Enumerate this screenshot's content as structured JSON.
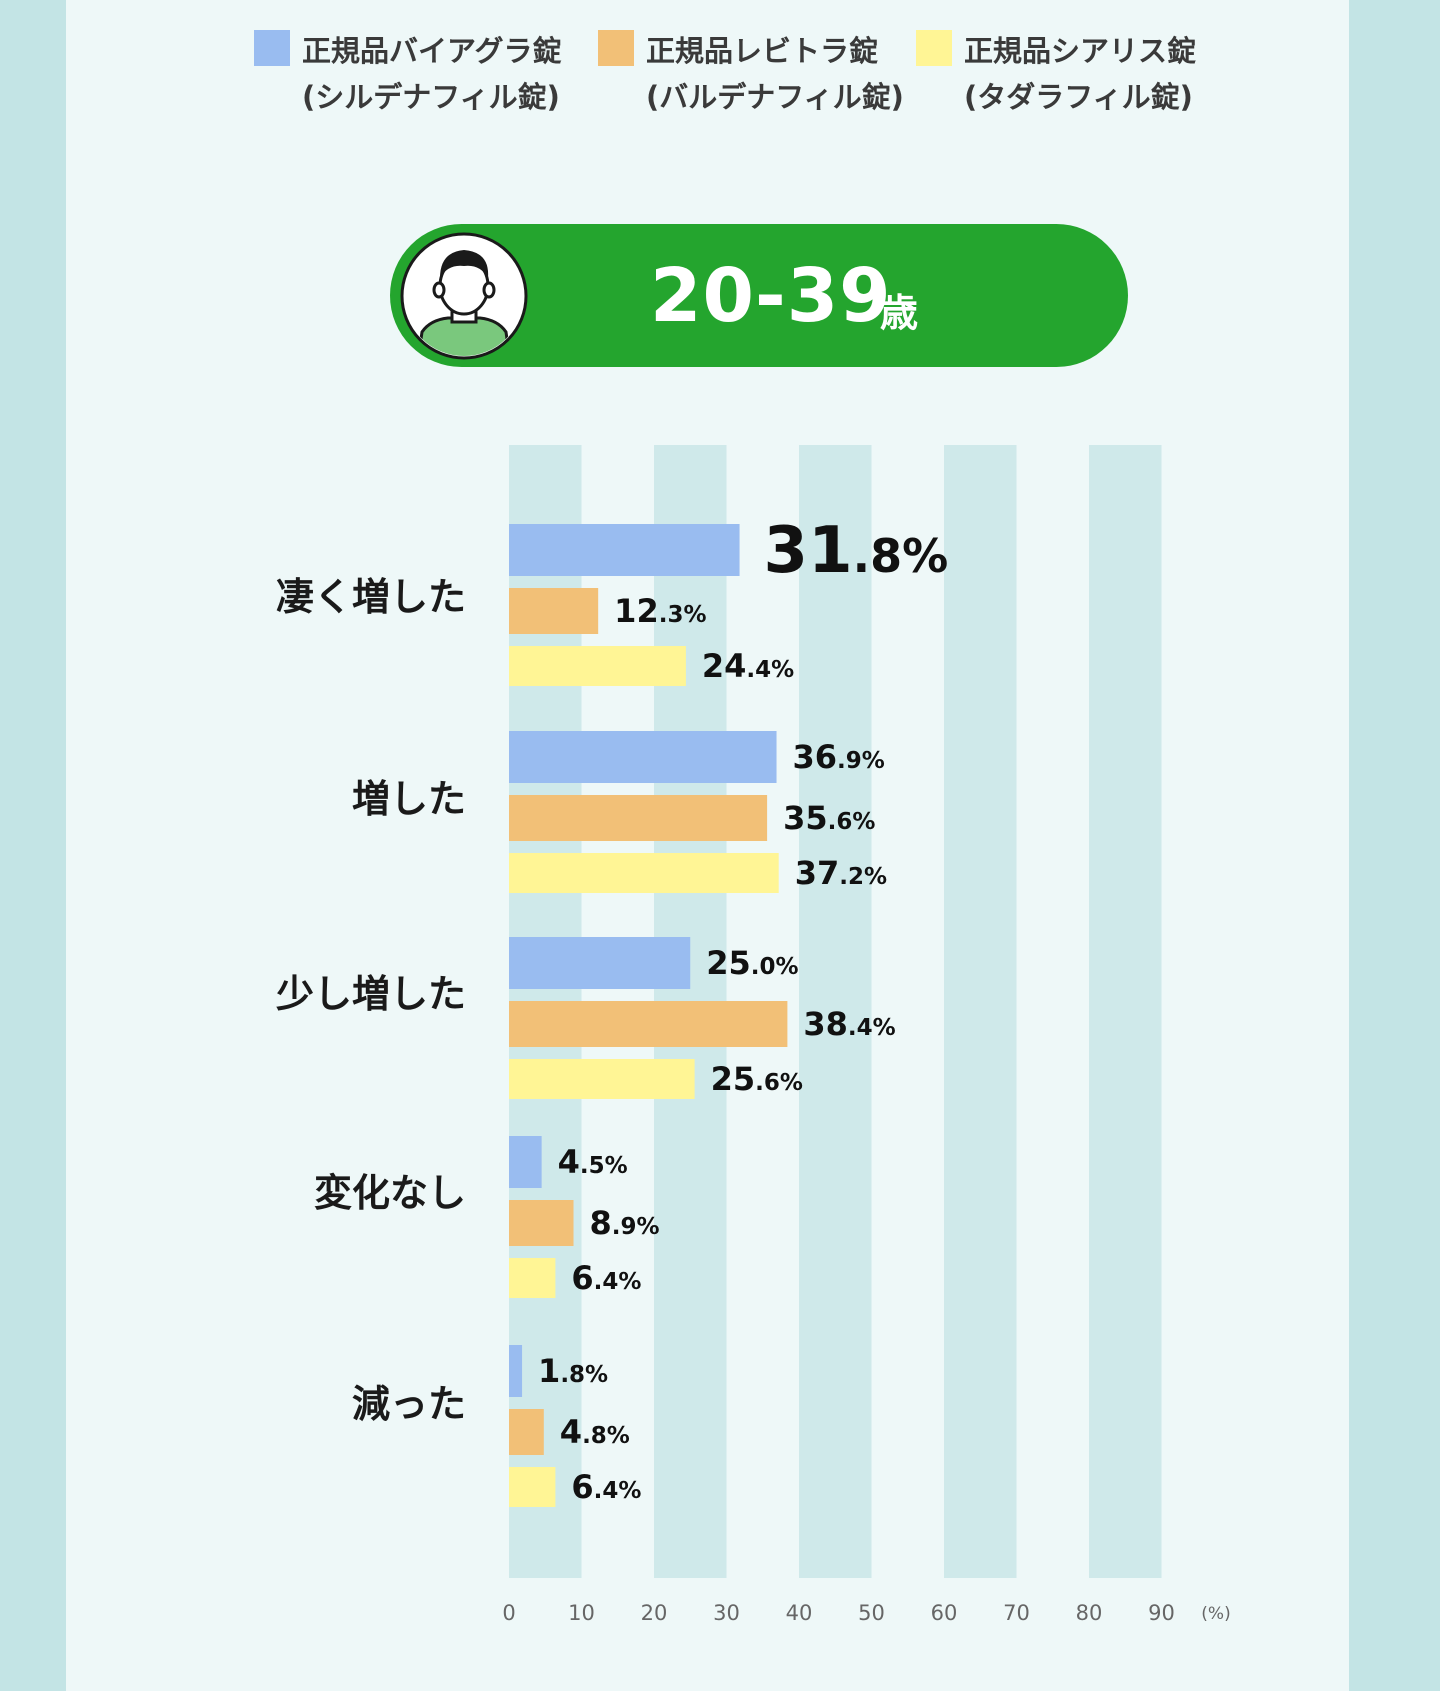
{
  "legend": [
    {
      "line1": "正規品バイアグラ錠",
      "line2": "(シルデナフィル錠)",
      "color": "#99bcf0"
    },
    {
      "line1": "正規品レビトラ錠",
      "line2": "(バルデナフィル錠)",
      "color": "#f2c077"
    },
    {
      "line1": "正規品シアリス錠",
      "line2": "(タダラフィル錠)",
      "color": "#fff595"
    }
  ],
  "age_banner": {
    "range": "20-39",
    "unit": "歳",
    "color": "#24a52e"
  },
  "chart_data": {
    "type": "bar",
    "orientation": "horizontal",
    "categories": [
      "凄く増した",
      "増した",
      "少し増した",
      "変化なし",
      "減った"
    ],
    "series": [
      {
        "name": "正規品バイアグラ錠",
        "color": "#99bcf0",
        "values": [
          31.8,
          36.9,
          25.0,
          4.5,
          1.8
        ]
      },
      {
        "name": "正規品レビトラ錠",
        "color": "#f2c077",
        "values": [
          12.3,
          35.6,
          38.4,
          8.9,
          4.8
        ]
      },
      {
        "name": "正規品シアリス錠",
        "color": "#fff595",
        "values": [
          24.4,
          37.2,
          25.6,
          6.4,
          6.4
        ]
      }
    ],
    "xticks": [
      "0",
      "10",
      "20",
      "30",
      "40",
      "50",
      "60",
      "70",
      "80",
      "90"
    ],
    "xunit": "(%)",
    "xlim": [
      0,
      90
    ],
    "value_suffix": "%"
  }
}
